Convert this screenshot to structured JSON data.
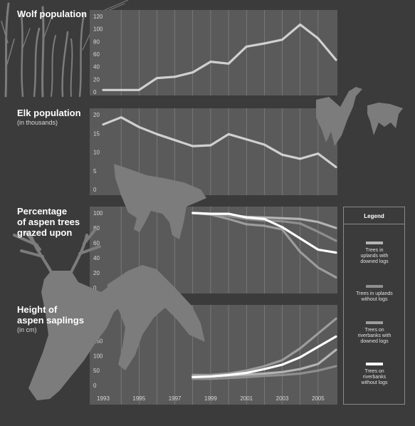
{
  "colors": {
    "background": "#3b3b3b",
    "panel": "#5a5a5a",
    "wolf_line": "#d0d0d0",
    "elk_line": "#d0d0d0",
    "silhouette": "#7c7c7c",
    "grid": "#8a8a8a"
  },
  "illustrations": [
    "trees-silhouette",
    "wolf-silhouette",
    "elk-silhouette"
  ],
  "chart_data": [
    {
      "type": "line",
      "title": "Wolf population",
      "subtitle": "",
      "x": [
        1993,
        1994,
        1995,
        1996,
        1997,
        1998,
        1999,
        2000,
        2001,
        2002,
        2003,
        2004,
        2005,
        2006
      ],
      "series": [
        {
          "values": [
            3,
            3,
            3,
            22,
            24,
            31,
            48,
            45,
            72,
            77,
            83,
            107,
            85,
            51
          ],
          "color": "#d0d0d0"
        }
      ],
      "ylim": [
        0,
        120
      ],
      "yticks": [
        0,
        20,
        40,
        60,
        80,
        100,
        120
      ]
    },
    {
      "type": "line",
      "title": "Elk population",
      "subtitle": "(in thousands)",
      "x": [
        1993,
        1994,
        1995,
        1996,
        1997,
        1998,
        1999,
        2000,
        2001,
        2002,
        2003,
        2004,
        2005,
        2006
      ],
      "series": [
        {
          "values": [
            17.4,
            19.3,
            16.7,
            14.8,
            13.2,
            11.6,
            11.8,
            14.8,
            13.4,
            12.0,
            9.3,
            8.2,
            9.6,
            6.0
          ],
          "color": "#d0d0d0"
        }
      ],
      "ylim": [
        0,
        20
      ],
      "yticks": [
        0,
        5,
        10,
        15,
        20
      ]
    },
    {
      "type": "line",
      "title": "Percentage\nof aspen trees\ngrazed upon",
      "subtitle": "",
      "x": [
        1998,
        1999,
        2000,
        2001,
        2002,
        2003,
        2004,
        2005,
        2006
      ],
      "series": [
        {
          "name": "Trees in uplands with downed logs",
          "values": [
            100,
            99,
            97,
            95,
            94,
            93,
            92,
            88,
            80
          ],
          "color": "#b4b4b4"
        },
        {
          "name": "Trees in uplands without logs",
          "values": [
            100,
            99,
            96,
            92,
            90,
            89,
            86,
            75,
            63
          ],
          "color": "#8e8e8e"
        },
        {
          "name": "Trees on riverbanks with downed logs",
          "values": [
            100,
            98,
            92,
            85,
            83,
            78,
            48,
            27,
            14
          ],
          "color": "#9c9c9c"
        },
        {
          "name": "Trees on riverbanks without logs",
          "values": [
            100,
            99,
            99,
            94,
            92,
            81,
            66,
            51,
            47
          ],
          "color": "#ffffff"
        }
      ],
      "ylim": [
        0,
        100
      ],
      "yticks": [
        0,
        20,
        40,
        60,
        80,
        100
      ]
    },
    {
      "type": "line",
      "title": "Height of\naspen saplings",
      "subtitle": "(in cm)",
      "x": [
        1998,
        1999,
        2000,
        2001,
        2002,
        2003,
        2004,
        2005,
        2006
      ],
      "series": [
        {
          "name": "Trees in uplands with downed logs",
          "values": [
            30,
            30,
            33,
            36,
            40,
            45,
            55,
            72,
            120
          ],
          "color": "#b4b4b4"
        },
        {
          "name": "Trees in uplands without logs",
          "values": [
            22,
            22,
            25,
            28,
            32,
            35,
            40,
            50,
            65
          ],
          "color": "#8e8e8e"
        },
        {
          "name": "Trees on riverbanks with downed logs",
          "values": [
            35,
            35,
            40,
            50,
            65,
            85,
            125,
            175,
            225
          ],
          "color": "#9c9c9c"
        },
        {
          "name": "Trees on riverbanks without logs",
          "values": [
            28,
            30,
            35,
            42,
            55,
            70,
            95,
            130,
            165
          ],
          "color": "#ffffff"
        }
      ],
      "ylim": [
        0,
        250
      ],
      "yticks": [
        0,
        50,
        100,
        150,
        200,
        250
      ],
      "xticks": [
        1993,
        1995,
        1997,
        1999,
        2001,
        2003,
        2005
      ]
    }
  ],
  "legend": {
    "title": "Legend",
    "items": [
      {
        "label": "Trees in\nuplands with\ndowned logs",
        "color": "#b4b4b4"
      },
      {
        "label": "Trees in uplands\nwithout logs",
        "color": "#8e8e8e"
      },
      {
        "label": "Trees on\nriverbanks with\ndowned logs",
        "color": "#9c9c9c"
      },
      {
        "label": "Trees on\nriverbanks\nwithout logs",
        "color": "#ffffff"
      }
    ]
  }
}
